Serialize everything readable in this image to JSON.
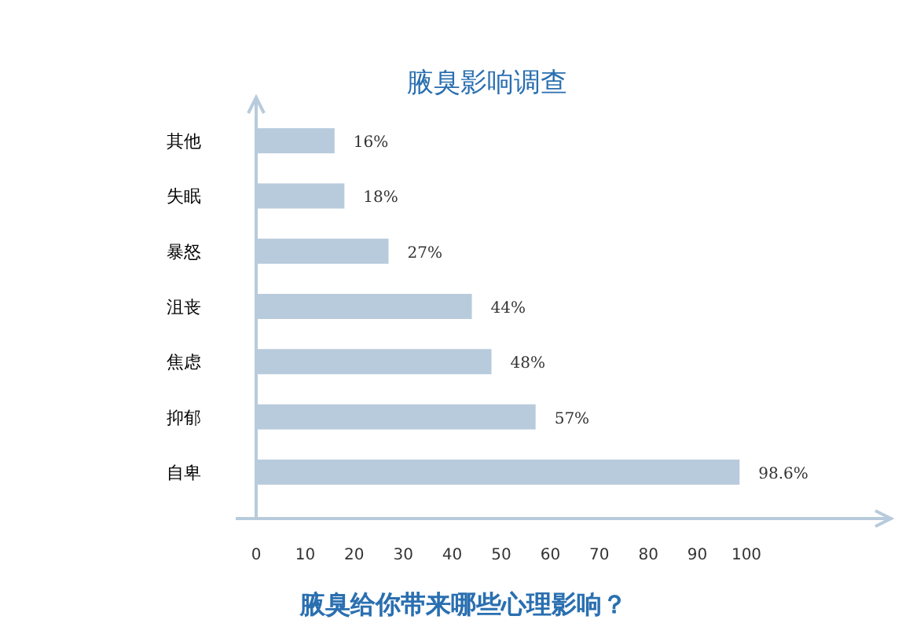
{
  "chart_data": {
    "type": "bar",
    "orientation": "horizontal",
    "title": "腋臭影响调查",
    "xlabel": "腋臭给你带来哪些心理影响？",
    "categories": [
      "其他",
      "失眠",
      "暴怒",
      "沮丧",
      "焦虑",
      "抑郁",
      "自卑"
    ],
    "values": [
      16,
      18,
      27,
      44,
      48,
      57,
      98.6
    ],
    "colors": [
      "#b8cbdc",
      "#b8cbdc",
      "#b8cbdc",
      "#b8cbdc",
      "#b8cbdc",
      "#b8cbdc",
      "#b8cbdc"
    ],
    "value_labels": [
      "16%",
      "18%",
      "27%",
      "44%",
      "48%",
      "57%",
      "98.6%"
    ],
    "xlim": [
      0,
      125
    ],
    "xticks": [
      0,
      10,
      20,
      30,
      40,
      50,
      60,
      70,
      80,
      90,
      100
    ],
    "grid": false
  }
}
